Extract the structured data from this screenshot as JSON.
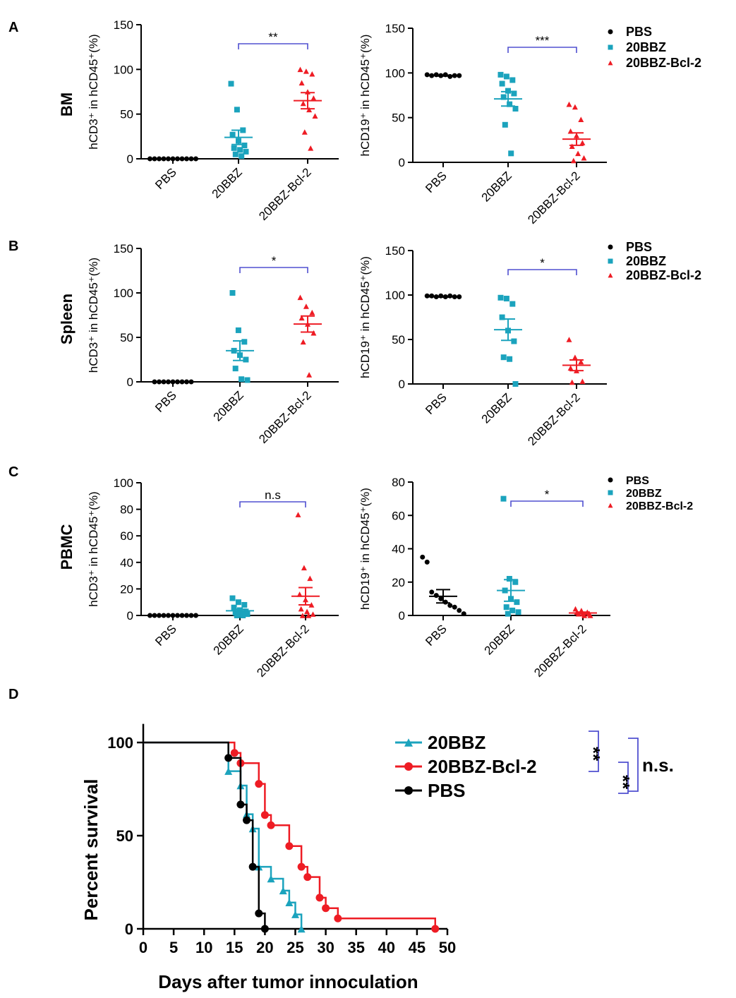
{
  "figure": {
    "panel_letters": [
      "A",
      "B",
      "C",
      "D"
    ],
    "row_labels": [
      "BM",
      "Spleen",
      "PBMC"
    ],
    "group_names": [
      "PBS",
      "20BBZ",
      "20BBZ-Bcl-2"
    ],
    "colors": {
      "PBS": "#000000",
      "20BBZ": "#1ba3bd",
      "20BBZ-Bcl-2": "#ee1c24",
      "bracket": "#5050d0"
    }
  },
  "legends": [
    {
      "row": "BM",
      "items": [
        "PBS",
        "20BBZ",
        "20BBZ-Bcl-2"
      ]
    },
    {
      "row": "Spleen",
      "items": [
        "PBS",
        "20BBZ",
        "20BBZ-Bcl-2"
      ]
    },
    {
      "row": "PBMC",
      "items": [
        "PBS",
        "20BBZ",
        "20BBZ-Bcl-2"
      ]
    }
  ],
  "chart_data": [
    {
      "id": "A-left",
      "type": "scatter",
      "row": "BM",
      "panel": "A",
      "ylabel": "hCD3⁺ in hCD45⁺(%)",
      "ylim": [
        0,
        150
      ],
      "yticks": [
        0,
        50,
        100,
        150
      ],
      "categories": [
        "PBS",
        "20BBZ",
        "20BBZ-Bcl-2"
      ],
      "series": [
        {
          "name": "PBS",
          "marker": "circle",
          "values": [
            0,
            0,
            0,
            0,
            0,
            0,
            0,
            0,
            0,
            0,
            0
          ],
          "mean": 0,
          "sem": 0
        },
        {
          "name": "20BBZ",
          "marker": "square",
          "values": [
            84,
            55,
            32,
            27,
            20,
            15,
            12,
            10,
            8,
            5,
            3
          ],
          "mean": 24,
          "sem": 8
        },
        {
          "name": "20BBZ-Bcl-2",
          "marker": "triangle",
          "values": [
            100,
            98,
            95,
            85,
            75,
            68,
            62,
            55,
            48,
            30,
            12
          ],
          "mean": 65,
          "sem": 9
        }
      ],
      "annotation": {
        "from": "20BBZ",
        "to": "20BBZ-Bcl-2",
        "label": "**"
      }
    },
    {
      "id": "A-right",
      "type": "scatter",
      "row": "BM",
      "panel": "A",
      "ylabel": "hCD19⁺ in hCD45⁺(%)",
      "ylim": [
        0,
        150
      ],
      "yticks": [
        0,
        50,
        100,
        150
      ],
      "categories": [
        "PBS",
        "20BBZ",
        "20BBZ-Bcl-2"
      ],
      "series": [
        {
          "name": "PBS",
          "marker": "circle",
          "values": [
            98,
            97,
            98,
            97,
            98,
            96,
            97,
            97
          ],
          "mean": 97,
          "sem": 0.5
        },
        {
          "name": "20BBZ",
          "marker": "square",
          "values": [
            98,
            96,
            92,
            88,
            80,
            77,
            73,
            65,
            60,
            42,
            10
          ],
          "mean": 71,
          "sem": 8
        },
        {
          "name": "20BBZ-Bcl-2",
          "marker": "triangle",
          "values": [
            65,
            62,
            48,
            35,
            30,
            22,
            18,
            10,
            5,
            2
          ],
          "mean": 26,
          "sem": 7
        }
      ],
      "annotation": {
        "from": "20BBZ",
        "to": "20BBZ-Bcl-2",
        "label": "***"
      }
    },
    {
      "id": "B-left",
      "type": "scatter",
      "row": "Spleen",
      "panel": "B",
      "ylabel": "hCD3⁺ in hCD45⁺(%)",
      "ylim": [
        0,
        150
      ],
      "yticks": [
        0,
        50,
        100,
        150
      ],
      "categories": [
        "PBS",
        "20BBZ",
        "20BBZ-Bcl-2"
      ],
      "series": [
        {
          "name": "PBS",
          "marker": "circle",
          "values": [
            0,
            0,
            0,
            0,
            0,
            0,
            0,
            0,
            0
          ],
          "mean": 0,
          "sem": 0
        },
        {
          "name": "20BBZ",
          "marker": "square",
          "values": [
            100,
            58,
            45,
            35,
            30,
            25,
            15,
            3,
            2
          ],
          "mean": 35,
          "sem": 11
        },
        {
          "name": "20BBZ-Bcl-2",
          "marker": "triangle",
          "values": [
            95,
            85,
            78,
            72,
            65,
            55,
            45,
            8
          ],
          "mean": 65,
          "sem": 9
        }
      ],
      "annotation": {
        "from": "20BBZ",
        "to": "20BBZ-Bcl-2",
        "label": "*"
      }
    },
    {
      "id": "B-right",
      "type": "scatter",
      "row": "Spleen",
      "panel": "B",
      "ylabel": "hCD19⁺ in hCD45⁺(%)",
      "ylim": [
        0,
        150
      ],
      "yticks": [
        0,
        50,
        100,
        150
      ],
      "categories": [
        "PBS",
        "20BBZ",
        "20BBZ-Bcl-2"
      ],
      "series": [
        {
          "name": "PBS",
          "marker": "circle",
          "values": [
            99,
            99,
            98,
            99,
            98,
            99,
            98,
            98
          ],
          "mean": 98,
          "sem": 0.4
        },
        {
          "name": "20BBZ",
          "marker": "square",
          "values": [
            97,
            96,
            90,
            75,
            60,
            48,
            30,
            28,
            0
          ],
          "mean": 61,
          "sem": 12
        },
        {
          "name": "20BBZ-Bcl-2",
          "marker": "triangle",
          "values": [
            50,
            30,
            25,
            18,
            15,
            3,
            2
          ],
          "mean": 21,
          "sem": 6
        }
      ],
      "annotation": {
        "from": "20BBZ",
        "to": "20BBZ-Bcl-2",
        "label": "*"
      }
    },
    {
      "id": "C-left",
      "type": "scatter",
      "row": "PBMC",
      "panel": "C",
      "ylabel": "hCD3⁺ in hCD45⁺(%)",
      "ylim": [
        0,
        100
      ],
      "yticks": [
        0,
        20,
        40,
        60,
        80,
        100
      ],
      "categories": [
        "PBS",
        "20BBZ",
        "20BBZ-Bcl-2"
      ],
      "series": [
        {
          "name": "PBS",
          "marker": "circle",
          "values": [
            0,
            0,
            0,
            0,
            0,
            0,
            0,
            0,
            0,
            0,
            0
          ],
          "mean": 0,
          "sem": 0
        },
        {
          "name": "20BBZ",
          "marker": "square",
          "values": [
            13,
            10,
            8,
            6,
            4,
            3,
            2,
            1,
            1,
            0,
            0
          ],
          "mean": 3.5,
          "sem": 1.2
        },
        {
          "name": "20BBZ-Bcl-2",
          "marker": "triangle",
          "values": [
            76,
            36,
            28,
            16,
            12,
            8,
            5,
            3,
            1,
            0,
            0
          ],
          "mean": 14.5,
          "sem": 6.5
        }
      ],
      "annotation": {
        "from": "20BBZ",
        "to": "20BBZ-Bcl-2",
        "label": "n.s"
      }
    },
    {
      "id": "C-right",
      "type": "scatter",
      "row": "PBMC",
      "panel": "C",
      "ylabel": "hCD19⁺ in hCD45⁺(%)",
      "ylim": [
        0,
        80
      ],
      "yticks": [
        0,
        20,
        40,
        60,
        80
      ],
      "categories": [
        "PBS",
        "20BBZ",
        "20BBZ-Bcl-2"
      ],
      "series": [
        {
          "name": "PBS",
          "marker": "circle",
          "values": [
            35,
            32,
            14,
            12,
            10,
            8,
            6,
            5,
            3,
            1
          ],
          "mean": 11.5,
          "sem": 4
        },
        {
          "name": "20BBZ",
          "marker": "square",
          "values": [
            70,
            22,
            20,
            15,
            10,
            8,
            5,
            3,
            2,
            1
          ],
          "mean": 15,
          "sem": 6.5
        },
        {
          "name": "20BBZ-Bcl-2",
          "marker": "triangle",
          "values": [
            4,
            3,
            2,
            2,
            1,
            1,
            1,
            0,
            0
          ],
          "mean": 1.5,
          "sem": 0.5
        }
      ],
      "annotation": {
        "from": "20BBZ",
        "to": "20BBZ-Bcl-2",
        "label": "*"
      }
    },
    {
      "id": "D",
      "type": "line",
      "subtype": "kaplan-meier",
      "panel": "D",
      "xlabel": "Days after tumor innoculation",
      "ylabel": "Percent survival",
      "xlim": [
        0,
        50
      ],
      "ylim": [
        0,
        110
      ],
      "xticks": [
        0,
        5,
        10,
        15,
        20,
        25,
        30,
        35,
        40,
        45,
        50
      ],
      "yticks": [
        0,
        50,
        100
      ],
      "series": [
        {
          "name": "20BBZ",
          "marker": "triangle",
          "steps": [
            [
              0,
              100
            ],
            [
              14,
              84.6
            ],
            [
              16,
              76.9
            ],
            [
              17,
              61.5
            ],
            [
              18,
              53.8
            ],
            [
              19,
              33.3
            ],
            [
              21,
              26.9
            ],
            [
              23,
              20.5
            ],
            [
              24,
              14.1
            ],
            [
              25,
              7.7
            ],
            [
              26,
              0
            ]
          ]
        },
        {
          "name": "20BBZ-Bcl-2",
          "marker": "circle",
          "steps": [
            [
              0,
              100
            ],
            [
              15,
              94.4
            ],
            [
              16,
              88.9
            ],
            [
              19,
              77.8
            ],
            [
              20,
              61.1
            ],
            [
              21,
              55.6
            ],
            [
              24,
              44.4
            ],
            [
              26,
              33.3
            ],
            [
              27,
              27.8
            ],
            [
              29,
              16.7
            ],
            [
              30,
              11.1
            ],
            [
              32,
              5.6
            ],
            [
              48,
              0
            ]
          ]
        },
        {
          "name": "PBS",
          "marker": "circle",
          "steps": [
            [
              0,
              100
            ],
            [
              14,
              91.7
            ],
            [
              16,
              66.7
            ],
            [
              17,
              58.3
            ],
            [
              18,
              33.3
            ],
            [
              19,
              8.3
            ],
            [
              20,
              0
            ]
          ]
        }
      ],
      "legend": [
        "20BBZ",
        "20BBZ-Bcl-2",
        "PBS"
      ],
      "comparisons": [
        {
          "groups": [
            "20BBZ",
            "20BBZ-Bcl-2"
          ],
          "label": "**"
        },
        {
          "groups": [
            "20BBZ-Bcl-2",
            "PBS"
          ],
          "label": "**"
        },
        {
          "groups": [
            "20BBZ",
            "PBS"
          ],
          "label": "n.s."
        }
      ]
    }
  ]
}
